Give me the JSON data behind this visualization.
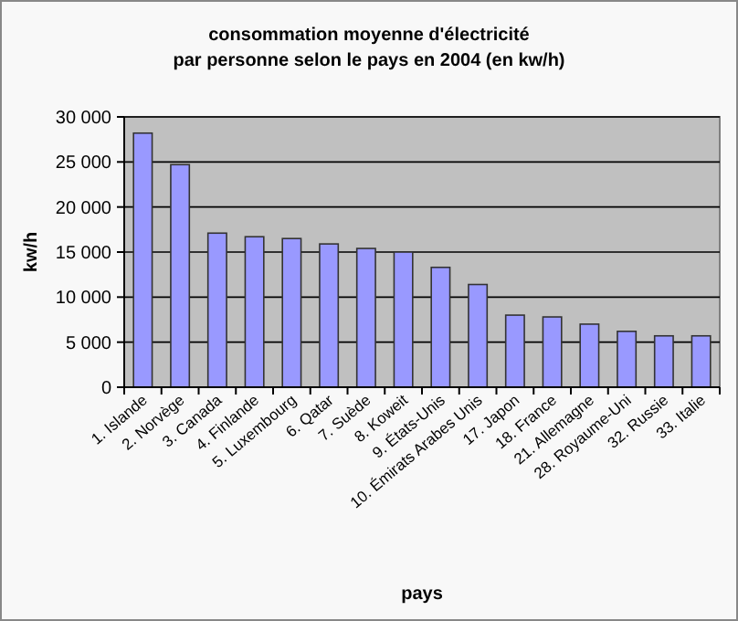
{
  "chart_data": {
    "type": "bar",
    "title": "consommation moyenne d'électricité\npar personne selon le pays en 2004 (en kw/h)",
    "xlabel": "pays",
    "ylabel": "kw/h",
    "categories": [
      "1. Islande",
      "2. Norvège",
      "3. Canada",
      "4. Finlande",
      "5. Luxembourg",
      "6. Qatar",
      "7. Suède",
      "8. Koweit",
      "9. États-Unis",
      "10. Émirats Arabes Unis",
      "17. Japon",
      "18. France",
      "21. Allemagne",
      "28. Royaume-Uni",
      "32. Russie",
      "33. Italie"
    ],
    "values": [
      28200,
      24700,
      17100,
      16700,
      16500,
      15900,
      15400,
      15000,
      13300,
      11400,
      8000,
      7800,
      7000,
      6200,
      5700,
      5700
    ],
    "color": "#9999ff",
    "ylim": [
      0,
      30000
    ],
    "yticks": [
      {
        "value": 0,
        "label": "0"
      },
      {
        "value": 5000,
        "label": "5 000"
      },
      {
        "value": 10000,
        "label": "10 000"
      },
      {
        "value": 15000,
        "label": "15 000"
      },
      {
        "value": 20000,
        "label": "20 000"
      },
      {
        "value": 25000,
        "label": "25 000"
      },
      {
        "value": 30000,
        "label": "30 000"
      }
    ],
    "grid": "y"
  }
}
